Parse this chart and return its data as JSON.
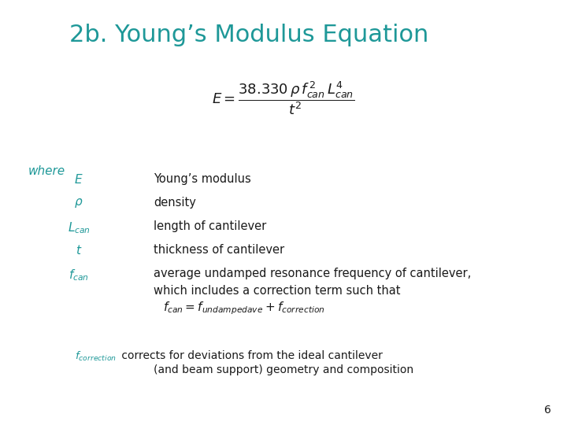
{
  "title": "2b. Young’s Modulus Equation",
  "title_color": "#1E9898",
  "title_fontsize": 22,
  "bg_color": "#FFFFFF",
  "teal_color": "#1E9898",
  "text_color": "#1a1a1a",
  "slide_number": "6",
  "where_items": [
    [
      "E",
      "Young’s modulus"
    ],
    [
      "\\rho",
      "density"
    ],
    [
      "L_{can}",
      "length of cantilever"
    ],
    [
      "t",
      "thickness of cantilever"
    ],
    [
      "f_{can}",
      "average undamped resonance frequency of cantilever,\nwhich includes a correction term such that"
    ]
  ]
}
